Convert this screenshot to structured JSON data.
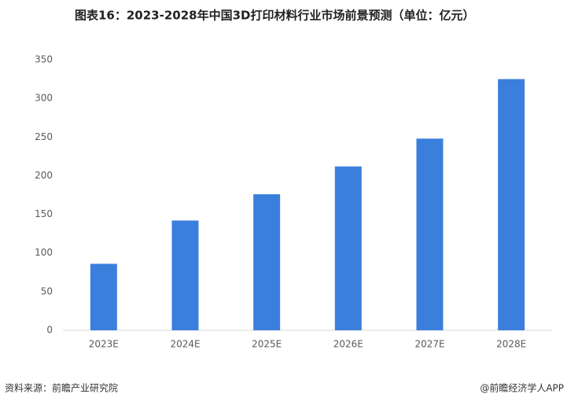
{
  "chart_data": {
    "type": "bar",
    "title": "图表16：2023-2028年中国3D打印材料行业市场前景预测（单位：亿元）",
    "categories": [
      "2023E",
      "2024E",
      "2025E",
      "2026E",
      "2027E",
      "2028E"
    ],
    "values": [
      86,
      142,
      176,
      212,
      248,
      325
    ],
    "color": "#3b7fdd",
    "ylim": [
      0,
      350
    ],
    "yticks": [
      0,
      50,
      100,
      150,
      200,
      250,
      300,
      350
    ],
    "grid": false,
    "source": "资料来源：前瞻产业研究院",
    "credit": "@前瞻经济学人APP"
  }
}
